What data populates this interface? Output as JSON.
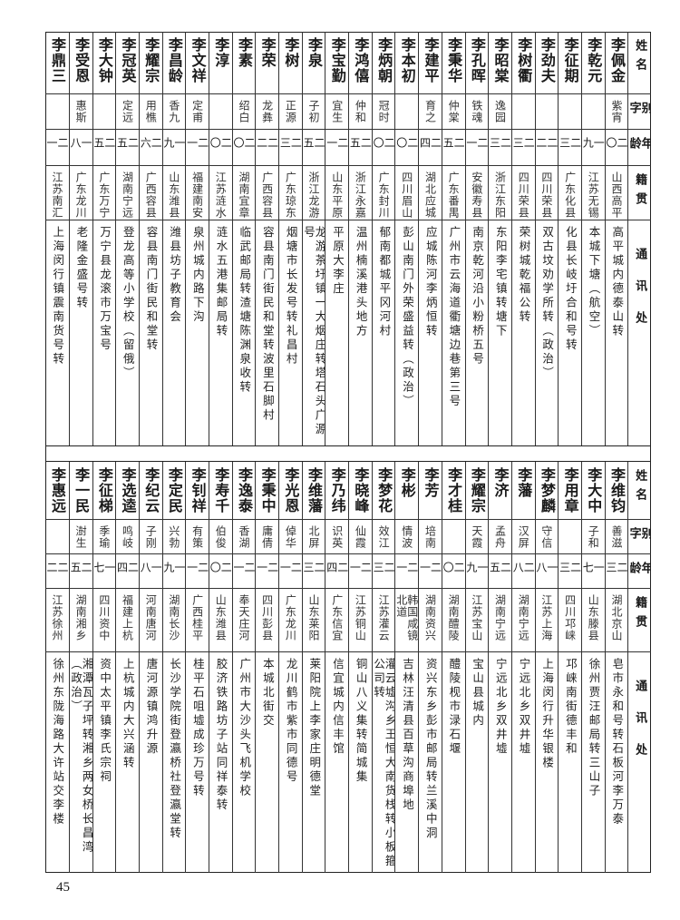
{
  "headers": {
    "name": "姓名",
    "alias": "别字",
    "age": "年龄",
    "origin": "籍贯",
    "address": "通讯处"
  },
  "top_rows": [
    {
      "name": "李佩金",
      "alias": "紫宵",
      "age": "二〇",
      "origin": "山西高平",
      "address": "高平城内德泰山转"
    },
    {
      "name": "李乾元",
      "alias": "",
      "age": "一九",
      "origin": "江苏无锡",
      "address": "本城下塘（航空）"
    },
    {
      "name": "李征期",
      "alias": "",
      "age": "二三",
      "origin": "广东化县",
      "address": "化县长岐圩合和号转"
    },
    {
      "name": "李劲夫",
      "alias": "",
      "age": "二二",
      "origin": "四川荣县",
      "address": "双古坟劝学所转（政治）"
    },
    {
      "name": "李树衢",
      "alias": "",
      "age": "二三",
      "origin": "四川荣县",
      "address": "荣树城乾福公转"
    },
    {
      "name": "李昭棠",
      "alias": "逸园",
      "age": "二三",
      "origin": "浙江东阳",
      "address": "东阳李宅镇转塘下"
    },
    {
      "name": "李孔晖",
      "alias": "铁魂",
      "age": "二一",
      "origin": "安徽寿县",
      "address": "南京乾河沿小粉桥五号"
    },
    {
      "name": "李秉华",
      "alias": "仲棠",
      "age": "二五",
      "origin": "广东番禺",
      "address": "广州市云海道衢塘边巷第三号"
    },
    {
      "name": "李建平",
      "alias": "育之",
      "age": "二四",
      "origin": "湖北应城",
      "address": "应城陈河李炳恒转"
    },
    {
      "name": "李本初",
      "alias": "",
      "age": "二〇",
      "origin": "四川眉山",
      "address": "彭山南门外荣盛益转（政治）"
    },
    {
      "name": "李炳朝",
      "alias": "冠时",
      "age": "二〇",
      "origin": "广东封川",
      "address": "郁南都城平冈河村"
    },
    {
      "name": "李鸿僖",
      "alias": "仲和",
      "age": "二五",
      "origin": "浙江永嘉",
      "address": "温州楠溪港头地方"
    },
    {
      "name": "李宝勤",
      "alias": "宜生",
      "age": "二一",
      "origin": "山东平原",
      "address": "平原大李庄"
    },
    {
      "name": "李泉",
      "alias": "子初",
      "age": "二五",
      "origin": "浙江龙游",
      "address": "龙游茶圩镇一大烟庄转塔石头广源号"
    },
    {
      "name": "李树",
      "alias": "正源",
      "age": "二三",
      "origin": "广东琼东",
      "address": "烟塘市长发号转礼昌村"
    },
    {
      "name": "李荣",
      "alias": "龙彝",
      "age": "二二",
      "origin": "广西容县",
      "address": "容县南门街民和堂转波里石脚村"
    },
    {
      "name": "李素",
      "alias": "绍白",
      "age": "二〇",
      "origin": "湖南宜章",
      "address": "临武邮局转渣塘陈渊泉收转"
    },
    {
      "name": "李淳",
      "alias": "",
      "age": "二〇",
      "origin": "江苏涟水",
      "address": "涟水五港集邮局转"
    },
    {
      "name": "李文祥",
      "alias": "定甫",
      "age": "二一",
      "origin": "福建南安",
      "address": "泉州城内路下沟"
    },
    {
      "name": "李昌龄",
      "alias": "香九",
      "age": "一九",
      "origin": "山东潍县",
      "address": "潍县坊子教育会"
    },
    {
      "name": "李耀宗",
      "alias": "用樵",
      "age": "二六",
      "origin": "广西容县",
      "address": "容县南门街民和堂转"
    },
    {
      "name": "李冠英",
      "alias": "定远",
      "age": "二五",
      "origin": "湖南宁远",
      "address": "登龙高等小学校（留俄）"
    },
    {
      "name": "李大钟",
      "alias": "",
      "age": "二五",
      "origin": "广东万宁",
      "address": "万宁县龙滚市万宝号"
    },
    {
      "name": "李受恩",
      "alias": "惠斯",
      "age": "一八",
      "origin": "广东龙川",
      "address": "老隆金盛号转"
    },
    {
      "name": "李鼎三",
      "alias": "",
      "age": "二一",
      "origin": "江苏南汇",
      "address": "上海闵行镇震南货号转"
    }
  ],
  "bottom_rows": [
    {
      "name": "李维钧",
      "alias": "善滋",
      "age": "二三",
      "origin": "湖北京山",
      "address": "皂市永和号转石板河李万泰"
    },
    {
      "name": "李大中",
      "alias": "子和",
      "age": "一七",
      "origin": "山东滕县",
      "address": "徐州贾汪邮局转三山子"
    },
    {
      "name": "李用章",
      "alias": "",
      "age": "二三",
      "origin": "四川邛崃",
      "address": "邛崃南街德丰和"
    },
    {
      "name": "李梦麟",
      "alias": "守信",
      "age": "一八",
      "origin": "江苏上海",
      "address": "上海闵行升华银楼"
    },
    {
      "name": "李藩",
      "alias": "汉屏",
      "age": "二八",
      "origin": "湖南宁远",
      "address": "宁远北乡双井墟"
    },
    {
      "name": "李济",
      "alias": "孟舟",
      "age": "二五",
      "origin": "湖南宁远",
      "address": "宁远北乡双井墟"
    },
    {
      "name": "李耀宗",
      "alias": "天霞",
      "age": "一九",
      "origin": "江苏宝山",
      "address": "宝山县城内"
    },
    {
      "name": "李才桂",
      "alias": "",
      "age": "二〇",
      "origin": "湖南醴陵",
      "address": "醴陵枧市渌石堰"
    },
    {
      "name": "李芳",
      "alias": "培南",
      "age": "二一",
      "origin": "湖南资兴",
      "address": "资兴东乡彭市邮局转兰溪中洞"
    },
    {
      "name": "李彬",
      "alias": "情波",
      "age": "二一",
      "origin": "韩国咸镜北道",
      "address": "吉林汪清县百草沟商埠地"
    },
    {
      "name": "李梦花",
      "alias": "效江",
      "age": "二三",
      "origin": "江苏灌云",
      "address": "灌云墟沟乡王恒大南货栈转小板箍公司转"
    },
    {
      "name": "李晓峰",
      "alias": "仙霞",
      "age": "二一",
      "origin": "江苏铜山",
      "address": "铜山八义集转简城集"
    },
    {
      "name": "李乃纬",
      "alias": "识英",
      "age": "二四",
      "origin": "广东信宜",
      "address": "信宜城内信丰馆"
    },
    {
      "name": "李维藩",
      "alias": "北屏",
      "age": "二三",
      "origin": "山东莱阳",
      "address": "莱阳院上李家庄明德堂"
    },
    {
      "name": "李光恩",
      "alias": "倬华",
      "age": "二一",
      "origin": "广东龙川",
      "address": "龙川鹤市紫市同德号"
    },
    {
      "name": "李秉中",
      "alias": "庸倩",
      "age": "二一",
      "origin": "四川彭县",
      "address": "本城北街交"
    },
    {
      "name": "李逸泰",
      "alias": "香湖",
      "age": "二一",
      "origin": "奉天庄河",
      "address": "广州市大沙头飞机学校"
    },
    {
      "name": "李寿千",
      "alias": "伯俊",
      "age": "二〇",
      "origin": "山东潍县",
      "address": "胶济铁路坊子站同祥泰转"
    },
    {
      "name": "李钊祥",
      "alias": "有策",
      "age": "二一",
      "origin": "广西桂平",
      "address": "桂平石咀墟成珍万号转"
    },
    {
      "name": "李定民",
      "alias": "兴勃",
      "age": "一九",
      "origin": "湖南长沙",
      "address": "长沙学院街登瀛桥社登瀛堂转"
    },
    {
      "name": "李纪云",
      "alias": "子刚",
      "age": "一八",
      "origin": "河南唐河",
      "address": "唐河源镇鸿升源"
    },
    {
      "name": "李选逵",
      "alias": "鸣岐",
      "age": "二四",
      "origin": "福建上杭",
      "address": "上杭城内大兴涵转"
    },
    {
      "name": "李征梯",
      "alias": "季瑜",
      "age": "一七",
      "origin": "四川资中",
      "address": "资中太平镇李氏宗祠"
    },
    {
      "name": "李一民",
      "alias": "澍生",
      "age": "二五",
      "origin": "湖南湘乡",
      "address": "湘潭瓦子坪转湘乡两女桥长昌湾（政治）"
    },
    {
      "name": "李惠远",
      "alias": "",
      "age": "二二",
      "origin": "江苏徐州",
      "address": "徐州东陇海路大许站交李楼"
    }
  ],
  "page_number": "45"
}
